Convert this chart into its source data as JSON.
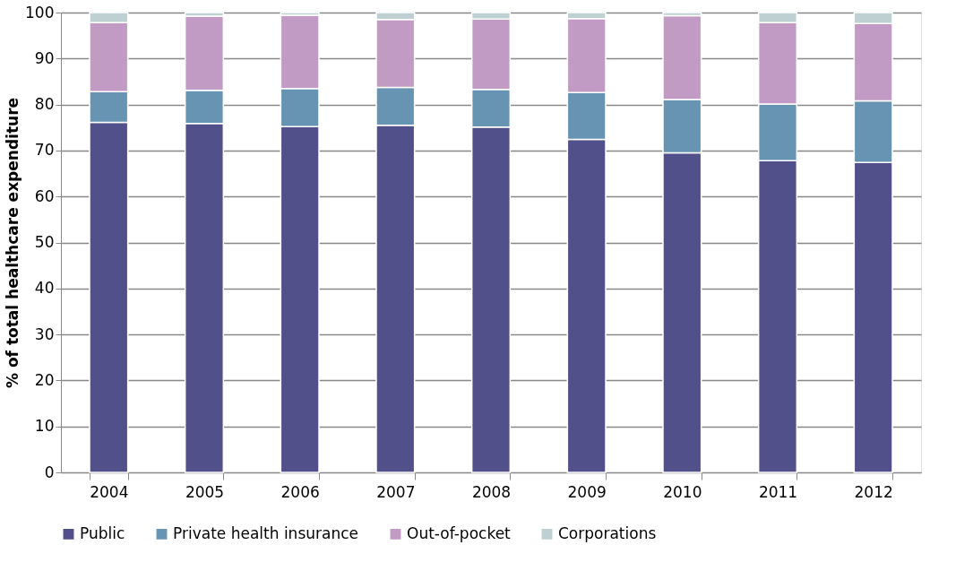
{
  "chart_data": {
    "type": "bar",
    "stacked": true,
    "ylabel": "% of total healthcare expenditure",
    "categories": [
      "2004",
      "2005",
      "2006",
      "2007",
      "2008",
      "2009",
      "2010",
      "2011",
      "2012"
    ],
    "series": [
      {
        "name": "Public",
        "color": "#52508a",
        "values": [
          76.1,
          75.9,
          75.2,
          75.5,
          75.1,
          72.4,
          69.5,
          67.8,
          67.4
        ]
      },
      {
        "name": "Private health insurance",
        "color": "#6794b3",
        "values": [
          6.7,
          7.2,
          8.3,
          8.2,
          8.2,
          10.2,
          11.6,
          12.3,
          13.4
        ]
      },
      {
        "name": "Out-of-pocket",
        "color": "#c29bc4",
        "values": [
          15.0,
          16.1,
          15.9,
          14.8,
          15.3,
          16.1,
          18.2,
          17.7,
          16.8
        ]
      },
      {
        "name": "Corporations",
        "color": "#bfd0d3",
        "values": [
          2.2,
          0.8,
          0.6,
          1.5,
          1.4,
          1.3,
          0.7,
          2.2,
          2.4
        ]
      }
    ],
    "ylim": [
      0,
      100
    ],
    "yticks": [
      0,
      10,
      20,
      30,
      40,
      50,
      60,
      70,
      80,
      90,
      100
    ],
    "grid": "y",
    "legend": "bottom"
  }
}
